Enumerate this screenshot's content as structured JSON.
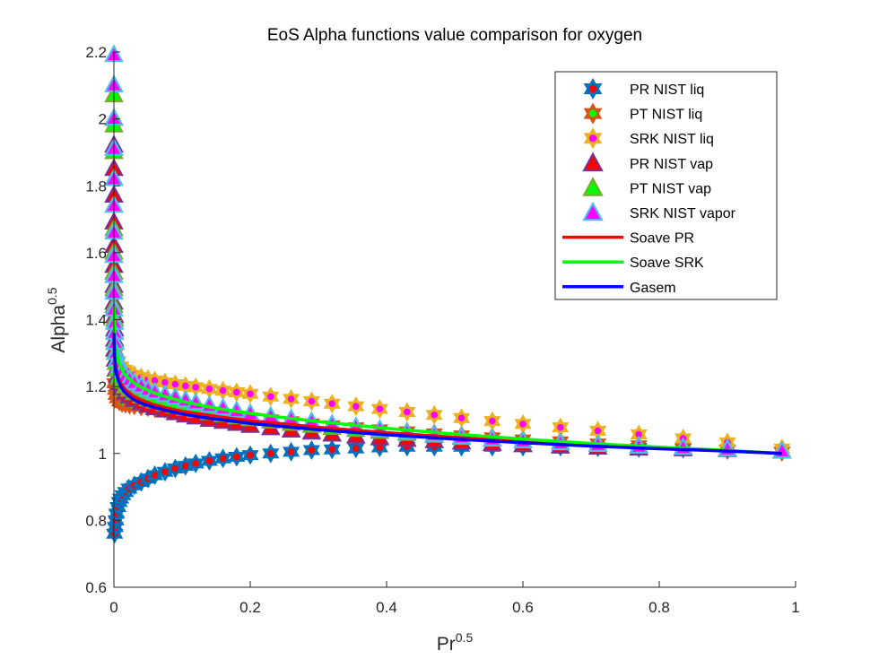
{
  "chart_data": {
    "type": "scatter",
    "title": "EoS Alpha functions value comparison for oxygen",
    "xlabel": "Pr",
    "xlabel_sup": "0.5",
    "ylabel": "Alpha",
    "ylabel_sup": "0.5",
    "xlim": [
      0,
      1
    ],
    "ylim": [
      0.6,
      2.2
    ],
    "x_ticks": [
      "0",
      "0.2",
      "0.4",
      "0.6",
      "0.8",
      "1"
    ],
    "y_ticks": [
      "0.6",
      "0.8",
      "1",
      "1.2",
      "1.4",
      "1.6",
      "1.8",
      "2",
      "2.2"
    ],
    "grid": false,
    "legend_position": "top-right",
    "colors": {
      "pr_liq_outer": "#0072BD",
      "pr_liq_inner": "#FF0000",
      "pt_liq_outer": "#D95319",
      "pt_liq_inner": "#00FF00",
      "srk_liq_outer": "#EDB120",
      "srk_liq_inner": "#FF00FF",
      "pr_vap_edge": "#7E2F8E",
      "pr_vap_fill": "#FF0000",
      "pt_vap_edge": "#77AC30",
      "pt_vap_fill": "#00FF00",
      "srk_vap_edge": "#4DBEEE",
      "srk_vap_fill": "#FF00FF",
      "soave_pr": "#FF0000",
      "soave_srk": "#00FF00",
      "gasem": "#0000FF"
    },
    "series": [
      {
        "name": "PR NIST liq",
        "marker": "hexagram",
        "x": [
          0.001,
          0.002,
          0.003,
          0.004,
          0.006,
          0.008,
          0.01,
          0.013,
          0.017,
          0.022,
          0.03,
          0.04,
          0.05,
          0.06,
          0.075,
          0.09,
          0.105,
          0.12,
          0.14,
          0.16,
          0.18,
          0.2,
          0.23,
          0.26,
          0.29,
          0.32,
          0.355,
          0.39,
          0.43,
          0.47,
          0.51,
          0.555,
          0.6,
          0.655,
          0.71,
          0.77,
          0.835,
          0.9,
          0.98
        ],
        "y": [
          0.76,
          0.78,
          0.8,
          0.82,
          0.84,
          0.855,
          0.865,
          0.875,
          0.885,
          0.895,
          0.905,
          0.915,
          0.925,
          0.935,
          0.945,
          0.955,
          0.963,
          0.97,
          0.978,
          0.985,
          0.99,
          0.995,
          1.0,
          1.005,
          1.01,
          1.012,
          1.015,
          1.018,
          1.02,
          1.02,
          1.02,
          1.02,
          1.02,
          1.02,
          1.018,
          1.016,
          1.014,
          1.01,
          1.005
        ]
      },
      {
        "name": "PT NIST liq",
        "marker": "hexagram",
        "x": [
          0.001,
          0.002,
          0.003,
          0.005,
          0.008,
          0.012,
          0.017,
          0.023,
          0.03,
          0.04,
          0.05,
          0.06,
          0.075,
          0.09,
          0.105,
          0.12,
          0.14,
          0.16,
          0.18,
          0.2,
          0.23,
          0.26,
          0.29,
          0.32,
          0.355,
          0.39,
          0.43,
          0.47,
          0.51,
          0.555,
          0.6,
          0.655,
          0.71,
          0.77,
          0.835,
          0.9,
          0.98
        ],
        "y": [
          1.21,
          1.19,
          1.175,
          1.165,
          1.155,
          1.15,
          1.148,
          1.145,
          1.143,
          1.14,
          1.138,
          1.135,
          1.132,
          1.13,
          1.127,
          1.124,
          1.12,
          1.116,
          1.112,
          1.108,
          1.102,
          1.096,
          1.09,
          1.084,
          1.078,
          1.072,
          1.066,
          1.06,
          1.054,
          1.048,
          1.042,
          1.036,
          1.03,
          1.024,
          1.018,
          1.012,
          1.005
        ]
      },
      {
        "name": "SRK NIST liq",
        "marker": "hexagram",
        "x": [
          0.001,
          0.003,
          0.006,
          0.01,
          0.015,
          0.02,
          0.03,
          0.04,
          0.05,
          0.06,
          0.075,
          0.09,
          0.105,
          0.12,
          0.14,
          0.16,
          0.18,
          0.2,
          0.23,
          0.26,
          0.29,
          0.32,
          0.355,
          0.39,
          0.43,
          0.47,
          0.51,
          0.555,
          0.6,
          0.655,
          0.71,
          0.77,
          0.835,
          0.9,
          0.98
        ],
        "y": [
          1.34,
          1.3,
          1.275,
          1.26,
          1.25,
          1.245,
          1.235,
          1.228,
          1.222,
          1.218,
          1.212,
          1.207,
          1.202,
          1.198,
          1.193,
          1.188,
          1.183,
          1.178,
          1.17,
          1.163,
          1.156,
          1.149,
          1.141,
          1.133,
          1.124,
          1.115,
          1.106,
          1.097,
          1.088,
          1.078,
          1.068,
          1.057,
          1.045,
          1.033,
          1.015
        ]
      },
      {
        "name": "PR NIST vap",
        "marker": "triangle",
        "x": [
          0.0,
          0.0,
          0.0,
          0.0,
          0.0,
          0.0,
          0.0,
          0.0,
          0.0,
          0.001,
          0.001,
          0.001,
          0.001,
          0.002,
          0.003,
          0.005,
          0.008,
          0.012,
          0.017,
          0.023,
          0.03,
          0.04,
          0.05,
          0.06,
          0.075,
          0.09,
          0.105,
          0.12,
          0.14,
          0.16,
          0.18,
          0.2,
          0.23,
          0.26,
          0.29,
          0.32,
          0.355,
          0.39,
          0.43,
          0.47,
          0.51,
          0.555,
          0.6,
          0.655,
          0.71,
          0.77,
          0.835,
          0.9,
          0.98
        ],
        "y": [
          2.0,
          1.92,
          1.85,
          1.77,
          1.69,
          1.62,
          1.56,
          1.5,
          1.45,
          1.41,
          1.37,
          1.34,
          1.31,
          1.28,
          1.25,
          1.23,
          1.21,
          1.195,
          1.18,
          1.17,
          1.16,
          1.15,
          1.142,
          1.135,
          1.128,
          1.12,
          1.113,
          1.107,
          1.1,
          1.094,
          1.088,
          1.082,
          1.075,
          1.068,
          1.062,
          1.056,
          1.05,
          1.045,
          1.04,
          1.036,
          1.032,
          1.028,
          1.024,
          1.02,
          1.017,
          1.014,
          1.012,
          1.01,
          1.005
        ]
      },
      {
        "name": "PT NIST vap",
        "marker": "triangle",
        "x": [
          0.0,
          0.0,
          0.0,
          0.0,
          0.0,
          0.0,
          0.0,
          0.0,
          0.0,
          0.0,
          0.001,
          0.001,
          0.001,
          0.002,
          0.003,
          0.005,
          0.008,
          0.012,
          0.017,
          0.023,
          0.03,
          0.04,
          0.05,
          0.06,
          0.075,
          0.09,
          0.105,
          0.12,
          0.14,
          0.16,
          0.18,
          0.2,
          0.23,
          0.26,
          0.29,
          0.32,
          0.355,
          0.39,
          0.43,
          0.47,
          0.51,
          0.555,
          0.6,
          0.655,
          0.71,
          0.77,
          0.835,
          0.9,
          0.98
        ],
        "y": [
          2.07,
          1.98,
          1.9,
          1.82,
          1.74,
          1.67,
          1.6,
          1.54,
          1.49,
          1.44,
          1.4,
          1.36,
          1.33,
          1.3,
          1.27,
          1.25,
          1.23,
          1.215,
          1.2,
          1.19,
          1.18,
          1.17,
          1.162,
          1.155,
          1.147,
          1.14,
          1.133,
          1.127,
          1.12,
          1.114,
          1.108,
          1.102,
          1.095,
          1.088,
          1.082,
          1.076,
          1.07,
          1.064,
          1.058,
          1.052,
          1.046,
          1.041,
          1.036,
          1.031,
          1.026,
          1.021,
          1.017,
          1.012,
          1.005
        ]
      },
      {
        "name": "SRK NIST vapor",
        "marker": "triangle",
        "x": [
          0.0,
          0.0,
          0.0,
          0.0,
          0.0,
          0.0,
          0.0,
          0.0,
          0.0,
          0.0,
          0.0,
          0.001,
          0.001,
          0.002,
          0.003,
          0.005,
          0.008,
          0.012,
          0.017,
          0.023,
          0.03,
          0.04,
          0.05,
          0.06,
          0.075,
          0.09,
          0.105,
          0.12,
          0.14,
          0.16,
          0.18,
          0.2,
          0.23,
          0.26,
          0.29,
          0.32,
          0.355,
          0.39,
          0.43,
          0.47,
          0.51,
          0.555,
          0.6,
          0.655,
          0.71,
          0.77,
          0.835,
          0.9,
          0.98
        ],
        "y": [
          2.19,
          2.1,
          2.0,
          1.91,
          1.82,
          1.74,
          1.66,
          1.59,
          1.53,
          1.48,
          1.43,
          1.39,
          1.36,
          1.33,
          1.3,
          1.28,
          1.26,
          1.245,
          1.23,
          1.22,
          1.21,
          1.2,
          1.19,
          1.182,
          1.174,
          1.166,
          1.158,
          1.15,
          1.142,
          1.134,
          1.126,
          1.118,
          1.11,
          1.102,
          1.094,
          1.086,
          1.078,
          1.07,
          1.062,
          1.055,
          1.048,
          1.042,
          1.036,
          1.03,
          1.025,
          1.02,
          1.016,
          1.012,
          1.006
        ]
      },
      {
        "name": "Soave PR",
        "marker": "line",
        "x": [
          0.0,
          0.001,
          0.002,
          0.004,
          0.007,
          0.01,
          0.015,
          0.02,
          0.03,
          0.04,
          0.06,
          0.08,
          0.1,
          0.13,
          0.16,
          0.2,
          0.25,
          0.3,
          0.35,
          0.4,
          0.5,
          0.6,
          0.7,
          0.8,
          0.9,
          0.98
        ],
        "y": [
          1.36,
          1.3,
          1.27,
          1.245,
          1.225,
          1.21,
          1.195,
          1.185,
          1.17,
          1.16,
          1.145,
          1.135,
          1.126,
          1.117,
          1.108,
          1.098,
          1.088,
          1.078,
          1.07,
          1.062,
          1.048,
          1.036,
          1.025,
          1.016,
          1.008,
          1.0
        ]
      },
      {
        "name": "Soave SRK",
        "marker": "line",
        "x": [
          0.0,
          0.001,
          0.002,
          0.004,
          0.007,
          0.01,
          0.015,
          0.02,
          0.03,
          0.04,
          0.06,
          0.08,
          0.1,
          0.13,
          0.16,
          0.2,
          0.25,
          0.3,
          0.35,
          0.4,
          0.5,
          0.6,
          0.7,
          0.8,
          0.9,
          0.98
        ],
        "y": [
          1.44,
          1.37,
          1.33,
          1.3,
          1.275,
          1.26,
          1.24,
          1.228,
          1.21,
          1.198,
          1.18,
          1.167,
          1.156,
          1.143,
          1.132,
          1.12,
          1.107,
          1.095,
          1.085,
          1.075,
          1.058,
          1.043,
          1.03,
          1.019,
          1.009,
          1.0
        ]
      },
      {
        "name": "Gasem",
        "marker": "line",
        "x": [
          0.0,
          0.001,
          0.002,
          0.004,
          0.007,
          0.01,
          0.015,
          0.02,
          0.03,
          0.04,
          0.06,
          0.08,
          0.1,
          0.13,
          0.16,
          0.2,
          0.25,
          0.3,
          0.35,
          0.4,
          0.5,
          0.6,
          0.7,
          0.8,
          0.9,
          0.98
        ],
        "y": [
          1.36,
          1.29,
          1.26,
          1.235,
          1.215,
          1.2,
          1.185,
          1.175,
          1.16,
          1.15,
          1.137,
          1.127,
          1.118,
          1.108,
          1.1,
          1.09,
          1.08,
          1.071,
          1.063,
          1.056,
          1.043,
          1.032,
          1.022,
          1.014,
          1.007,
          1.0
        ]
      }
    ]
  }
}
